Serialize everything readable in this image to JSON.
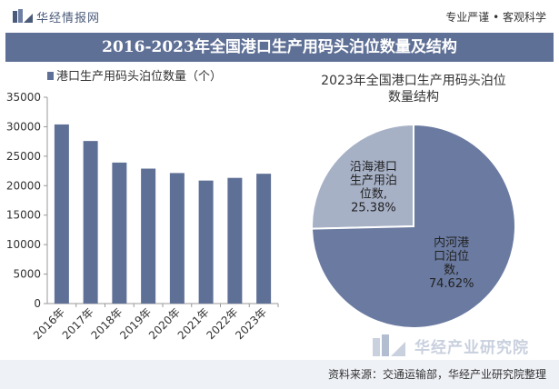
{
  "header": {
    "brand": "华经情报网",
    "slogan": "专业严谨 • 客观科学"
  },
  "title": "2016-2023年全国港口生产用码头泊位数量及结构",
  "footer": {
    "source": "资料来源：交通运输部，华经产业研究院整理"
  },
  "watermark": {
    "brand": "华经产业研究院"
  },
  "colors": {
    "bar": "#5f7096",
    "pie_inland": "#6a7aa0",
    "pie_coastal": "#a7b1c6",
    "title_band": "#5f7096"
  },
  "chart_data": [
    {
      "type": "bar",
      "legend": "港口生产用码头泊位数量（个）",
      "categories": [
        "2016年",
        "2017年",
        "2018年",
        "2019年",
        "2020年",
        "2021年",
        "2022年",
        "2023年"
      ],
      "values": [
        30388,
        27578,
        23919,
        22893,
        22142,
        20867,
        21323,
        22023
      ],
      "ylim": [
        0,
        35000
      ],
      "yticks": [
        0,
        5000,
        10000,
        15000,
        20000,
        25000,
        30000,
        35000
      ],
      "grid": false
    },
    {
      "type": "pie",
      "title_lines": [
        "2023年全国港口生产用码头泊位",
        "数量结构"
      ],
      "slices": [
        {
          "label_lines": [
            "沿海港口",
            "生产用泊",
            "位数,",
            "25.38%"
          ],
          "value": 25.38
        },
        {
          "label_lines": [
            "内河港",
            "口泊位",
            "数,",
            "74.62%"
          ],
          "value": 74.62
        }
      ]
    }
  ]
}
